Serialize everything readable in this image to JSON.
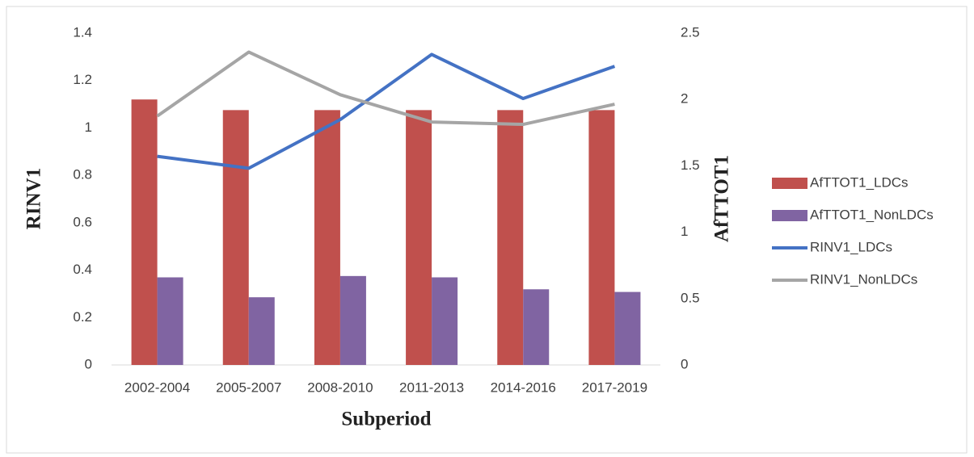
{
  "chart_data": {
    "type": "bar-line",
    "x_label": "Subperiod",
    "y_label": "RINV1",
    "y2_label": "AfTTOT1",
    "categories": [
      "2002-2004",
      "2005-2007",
      "2008-2010",
      "2011-2013",
      "2014-2016",
      "2017-2019"
    ],
    "series": [
      {
        "name": "AfTTOT1_LDCs",
        "type": "bar",
        "axis": "y2",
        "color": "#c0504d",
        "values": [
          2.0,
          1.92,
          1.92,
          1.92,
          1.92,
          1.92
        ]
      },
      {
        "name": "AfTTOT1_NonLDCs",
        "type": "bar",
        "axis": "y2",
        "color": "#8064a2",
        "values": [
          0.66,
          0.51,
          0.67,
          0.66,
          0.57,
          0.55
        ]
      },
      {
        "name": "RINV1_LDCs",
        "type": "line",
        "color": "#4472c4",
        "values": [
          0.88,
          0.83,
          1.035,
          1.31,
          1.124,
          1.26
        ]
      },
      {
        "name": "RINV1_NonLDCs",
        "type": "line",
        "color": "#a5a5a5",
        "values": [
          1.05,
          1.32,
          1.14,
          1.025,
          1.015,
          1.1
        ]
      }
    ],
    "ylim": [
      0,
      1.4
    ],
    "yticks": [
      0,
      0.2,
      0.4,
      0.6,
      0.8,
      1,
      1.2,
      1.4
    ],
    "y2lim": [
      0,
      2.5
    ],
    "y2ticks": [
      0,
      0.5,
      1,
      1.5,
      2,
      2.5
    ]
  }
}
